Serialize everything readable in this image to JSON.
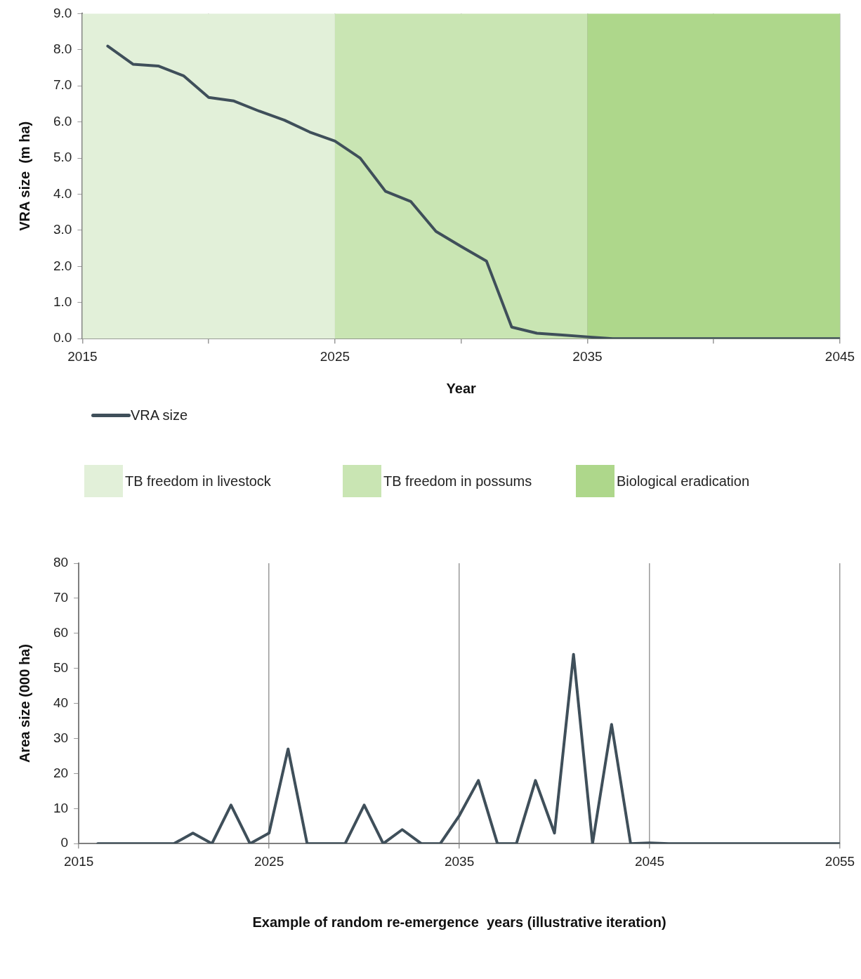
{
  "chart_data": [
    {
      "type": "line",
      "xlabel": "Year",
      "ylabel": "VRA size  (m ha)",
      "series": [
        {
          "name": "VRA size",
          "color": "#3f4f5a",
          "x": [
            2016,
            2017,
            2018,
            2019,
            2020,
            2021,
            2022,
            2023,
            2024,
            2025,
            2026,
            2027,
            2028,
            2029,
            2030,
            2031,
            2032,
            2033,
            2034,
            2035,
            2036,
            2037,
            2038,
            2039,
            2040,
            2041,
            2042,
            2043,
            2044,
            2045
          ],
          "values": [
            8.1,
            7.6,
            7.55,
            7.28,
            6.68,
            6.58,
            6.3,
            6.05,
            5.72,
            5.47,
            5.0,
            4.08,
            3.8,
            2.97,
            2.55,
            2.15,
            0.32,
            0.15,
            0.1,
            0.05,
            0,
            0,
            0,
            0,
            0,
            0,
            0,
            0,
            0,
            0
          ]
        }
      ],
      "xlim": [
        2015,
        2045
      ],
      "xticks": [
        2015,
        {
          "value": 2020,
          "label": null
        },
        2025,
        {
          "value": 2030,
          "label": null
        },
        2035,
        {
          "value": 2040,
          "label": null
        },
        2045
      ],
      "ylim": [
        0,
        9
      ],
      "yticks": [
        {
          "value": 0,
          "label": "0.0"
        },
        {
          "value": 1,
          "label": "1.0"
        },
        {
          "value": 2,
          "label": "2.0"
        },
        {
          "value": 3,
          "label": "3.0"
        },
        {
          "value": 4,
          "label": "4.0"
        },
        {
          "value": 5,
          "label": "5.0"
        },
        {
          "value": 6,
          "label": "6.0"
        },
        {
          "value": 7,
          "label": "7.0"
        },
        {
          "value": 8,
          "label": "8.0"
        },
        {
          "value": 9,
          "label": "9.0"
        }
      ],
      "bands": [
        {
          "axis": "x",
          "from": 2015,
          "to": 2025,
          "label": "TB freedom in livestock",
          "color": "#e2f0d9"
        },
        {
          "axis": "x",
          "from": 2025,
          "to": 2035,
          "label": "TB freedom in possums",
          "color": "#c9e5b3"
        },
        {
          "axis": "x",
          "from": 2035,
          "to": 2045,
          "label": "Biological eradication",
          "color": "#aed78b"
        }
      ],
      "grid": "x",
      "legend": "bottom",
      "marker": "none",
      "line_style": "solid"
    },
    {
      "type": "line",
      "xlabel": "Example of random re-emergence  years (illustrative iteration)",
      "ylabel": "Area size (000 ha)",
      "series": [
        {
          "color": "#3f4f5a",
          "x": [
            2016,
            2017,
            2018,
            2019,
            2020,
            2021,
            2022,
            2023,
            2024,
            2025,
            2026,
            2027,
            2028,
            2029,
            2030,
            2031,
            2032,
            2033,
            2034,
            2035,
            2036,
            2037,
            2038,
            2039,
            2040,
            2041,
            2042,
            2043,
            2044,
            2045,
            2046,
            2047,
            2048,
            2049,
            2050,
            2051,
            2052,
            2053,
            2054,
            2055
          ],
          "values": [
            0,
            0,
            0,
            0,
            0,
            3,
            0,
            11,
            0,
            3,
            27,
            0,
            0,
            0,
            11,
            0,
            4,
            0,
            0,
            8,
            18,
            0,
            0,
            18,
            3,
            54,
            0,
            34,
            0,
            0.2,
            0,
            0,
            0,
            0,
            0,
            0,
            0,
            0,
            0,
            0
          ]
        }
      ],
      "xlim": [
        2015,
        2055
      ],
      "xticks": [
        2015,
        2025,
        2035,
        2045,
        2055
      ],
      "ylim": [
        0,
        80
      ],
      "yticks": [
        0,
        10,
        20,
        30,
        40,
        50,
        60,
        70,
        80
      ],
      "grid": "x",
      "marker": "none",
      "line_style": "solid"
    }
  ]
}
